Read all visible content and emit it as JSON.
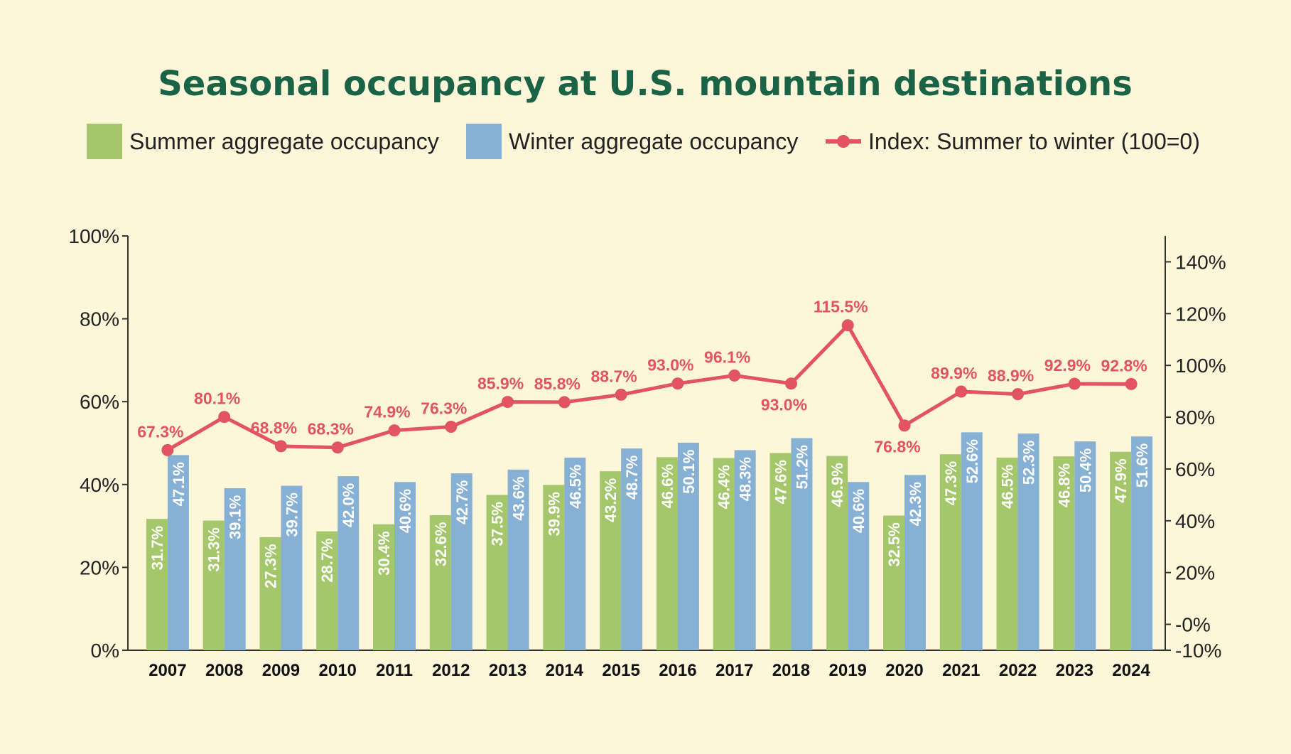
{
  "colors": {
    "background": "#fdf6d9",
    "title": "#1a6346",
    "summer": "#a3c76a",
    "winter": "#86b0d4",
    "index": "#e2545f",
    "axis": "#333333"
  },
  "legend": {
    "summer_label": "Summer aggregate occupancy",
    "winter_label": "Winter aggregate occupancy",
    "index_label": "Index: Summer to winter (100=0)"
  },
  "chart_data": {
    "type": "bar",
    "title": "Seasonal occupancy at U.S. mountain destinations",
    "categories": [
      "2007",
      "2008",
      "2009",
      "2010",
      "2011",
      "2012",
      "2013",
      "2014",
      "2015",
      "2016",
      "2017",
      "2018",
      "2019",
      "2020",
      "2021",
      "2022",
      "2023",
      "2024"
    ],
    "series": [
      {
        "name": "Summer aggregate occupancy",
        "type": "bar",
        "axis": "left",
        "values": [
          31.7,
          31.3,
          27.3,
          28.7,
          30.4,
          32.6,
          37.5,
          39.9,
          43.2,
          46.6,
          46.4,
          47.6,
          46.9,
          32.5,
          47.3,
          46.5,
          46.8,
          47.9
        ],
        "labels": [
          "31.7%",
          "31.3%",
          "27.3%",
          "28.7%",
          "30.4%",
          "32.6%",
          "37.5%",
          "39.9%",
          "43.2%",
          "46.6%",
          "46.4%",
          "47.6%",
          "46.9%",
          "32.5%",
          "47.3%",
          "46.5%",
          "46.8%",
          "47.9%"
        ]
      },
      {
        "name": "Winter aggregate occupancy",
        "type": "bar",
        "axis": "left",
        "values": [
          47.1,
          39.1,
          39.7,
          42.0,
          40.6,
          42.7,
          43.6,
          46.5,
          48.7,
          50.1,
          48.3,
          51.2,
          40.6,
          42.3,
          52.6,
          52.3,
          50.4,
          51.6
        ],
        "labels": [
          "47.1%",
          "39.1%",
          "39.7%",
          "42.0%",
          "40.6%",
          "42.7%",
          "43.6%",
          "46.5%",
          "48.7%",
          "50.1%",
          "48.3%",
          "51.2%",
          "40.6%",
          "42.3%",
          "52.6%",
          "52.3%",
          "50.4%",
          "51.6%"
        ]
      },
      {
        "name": "Index: Summer to winter (100=0)",
        "type": "line",
        "axis": "right",
        "values": [
          67.3,
          80.1,
          68.8,
          68.3,
          74.9,
          76.3,
          85.9,
          85.8,
          88.7,
          93.0,
          96.1,
          93.0,
          115.5,
          76.8,
          89.9,
          88.9,
          92.9,
          92.8
        ],
        "labels": [
          "67.3%",
          "80.1%",
          "68.8%",
          "68.3%",
          "74.9%",
          "76.3%",
          "85.9%",
          "85.8%",
          "88.7%",
          "93.0%",
          "96.1%",
          "93.0%",
          "115.5%",
          "76.8%",
          "89.9%",
          "88.9%",
          "92.9%",
          "92.8%"
        ],
        "label_position": [
          "above",
          "above",
          "above",
          "above",
          "above",
          "above",
          "above",
          "above",
          "above",
          "above",
          "above",
          "below",
          "above",
          "below",
          "above",
          "above",
          "above",
          "above"
        ]
      }
    ],
    "y_left": {
      "min": 0,
      "max": 100,
      "ticks": [
        0,
        20,
        40,
        60,
        80,
        100
      ],
      "tick_labels": [
        "0%",
        "20%",
        "40%",
        "60%",
        "80%",
        "100%"
      ]
    },
    "y_right": {
      "min": -10,
      "max": 150,
      "ticks": [
        -10,
        0,
        20,
        40,
        60,
        80,
        100,
        120,
        140
      ],
      "tick_labels": [
        "-10%",
        "-0%",
        "20%",
        "40%",
        "60%",
        "80%",
        "100%",
        "120%",
        "140%"
      ]
    },
    "legend_position": "top",
    "grid": false
  }
}
